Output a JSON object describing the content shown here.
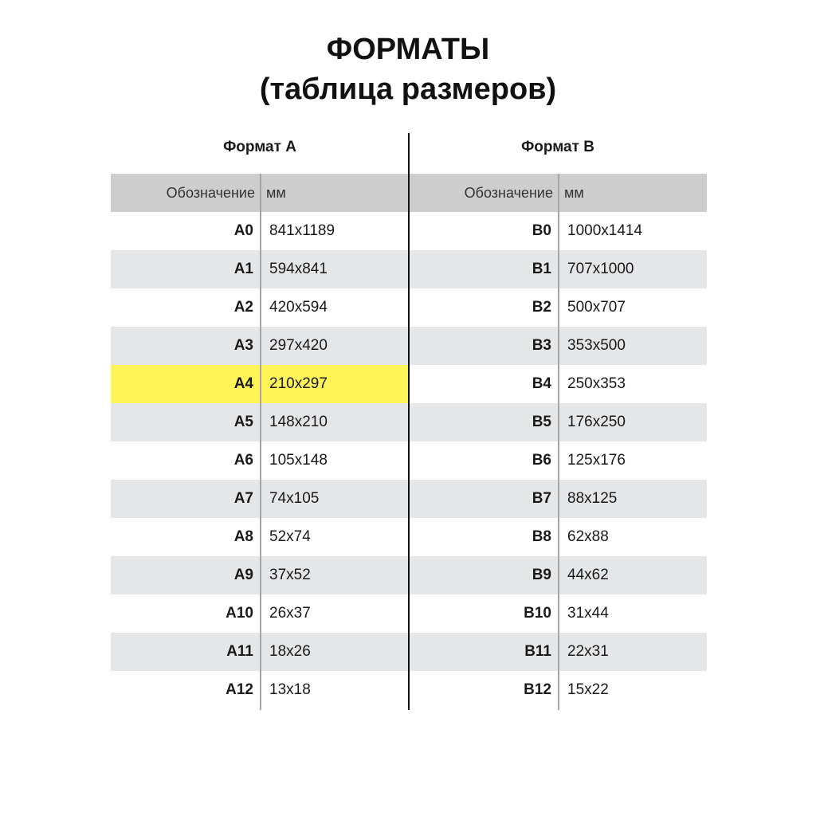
{
  "title": {
    "line1": "ФОРМАТЫ",
    "line2": "(таблица размеров)"
  },
  "colors": {
    "header": "#cdcdcd",
    "stripe": "#e5e6e8",
    "highlight": "#fff35a",
    "divider": "#111111"
  },
  "tables": [
    {
      "heading": "Формат A",
      "col_label": "Обозначение",
      "col_value": "мм",
      "highlighted": "A4",
      "rows": [
        {
          "label": "A0",
          "value": "841x1189"
        },
        {
          "label": "A1",
          "value": "594x841"
        },
        {
          "label": "A2",
          "value": "420x594"
        },
        {
          "label": "A3",
          "value": "297x420"
        },
        {
          "label": "A4",
          "value": "210x297"
        },
        {
          "label": "A5",
          "value": "148x210"
        },
        {
          "label": "A6",
          "value": "105x148"
        },
        {
          "label": "A7",
          "value": "74x105"
        },
        {
          "label": "A8",
          "value": "52x74"
        },
        {
          "label": "A9",
          "value": "37x52"
        },
        {
          "label": "A10",
          "value": "26x37"
        },
        {
          "label": "A11",
          "value": "18x26"
        },
        {
          "label": "A12",
          "value": "13x18"
        }
      ]
    },
    {
      "heading": "Формат B",
      "col_label": "Обозначение",
      "col_value": "мм",
      "highlighted": "",
      "rows": [
        {
          "label": "B0",
          "value": "1000x1414"
        },
        {
          "label": "B1",
          "value": "707x1000"
        },
        {
          "label": "B2",
          "value": "500x707"
        },
        {
          "label": "B3",
          "value": "353x500"
        },
        {
          "label": "B4",
          "value": "250x353"
        },
        {
          "label": "B5",
          "value": "176x250"
        },
        {
          "label": "B6",
          "value": "125x176"
        },
        {
          "label": "B7",
          "value": "88x125"
        },
        {
          "label": "B8",
          "value": "62x88"
        },
        {
          "label": "B9",
          "value": "44x62"
        },
        {
          "label": "B10",
          "value": "31x44"
        },
        {
          "label": "B11",
          "value": "22x31"
        },
        {
          "label": "B12",
          "value": "15x22"
        }
      ]
    }
  ]
}
